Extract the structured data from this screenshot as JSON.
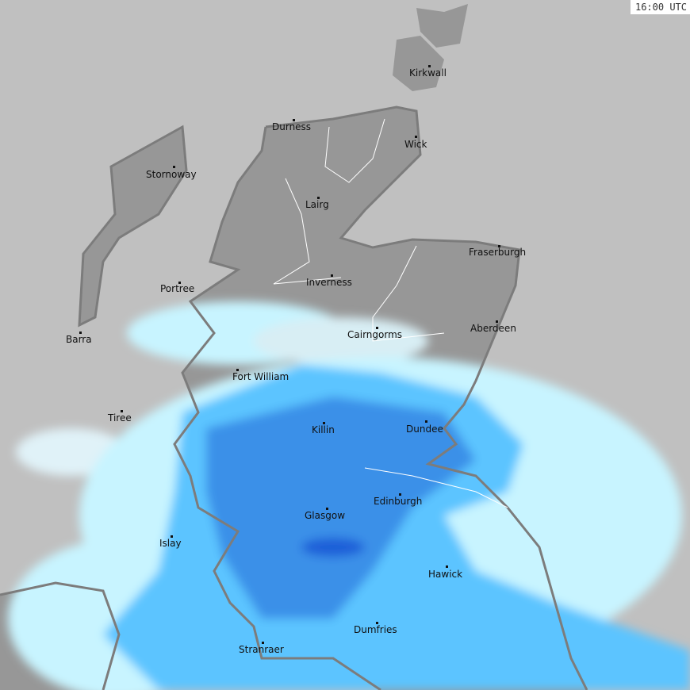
{
  "timestamp": "16:00 UTC",
  "colors": {
    "sea": "#c0c0c0",
    "land": "#979797",
    "coast": "#7c7c7c",
    "rain_light": "#c8f4ff",
    "rain_mid": "#5cc4ff",
    "rain_heavy": "#3a90e8",
    "rain_intense": "#1e5fd8"
  },
  "places": [
    "Kirkwall",
    "Durness",
    "Wick",
    "Stornoway",
    "Lairg",
    "Fraserburgh",
    "Portree",
    "Inverness",
    "Barra",
    "Cairngorms",
    "Aberdeen",
    "Fort William",
    "Tiree",
    "Killin",
    "Dundee",
    "Edinburgh",
    "Glasgow",
    "Islay",
    "Hawick",
    "Dumfries",
    "Stranraer"
  ]
}
